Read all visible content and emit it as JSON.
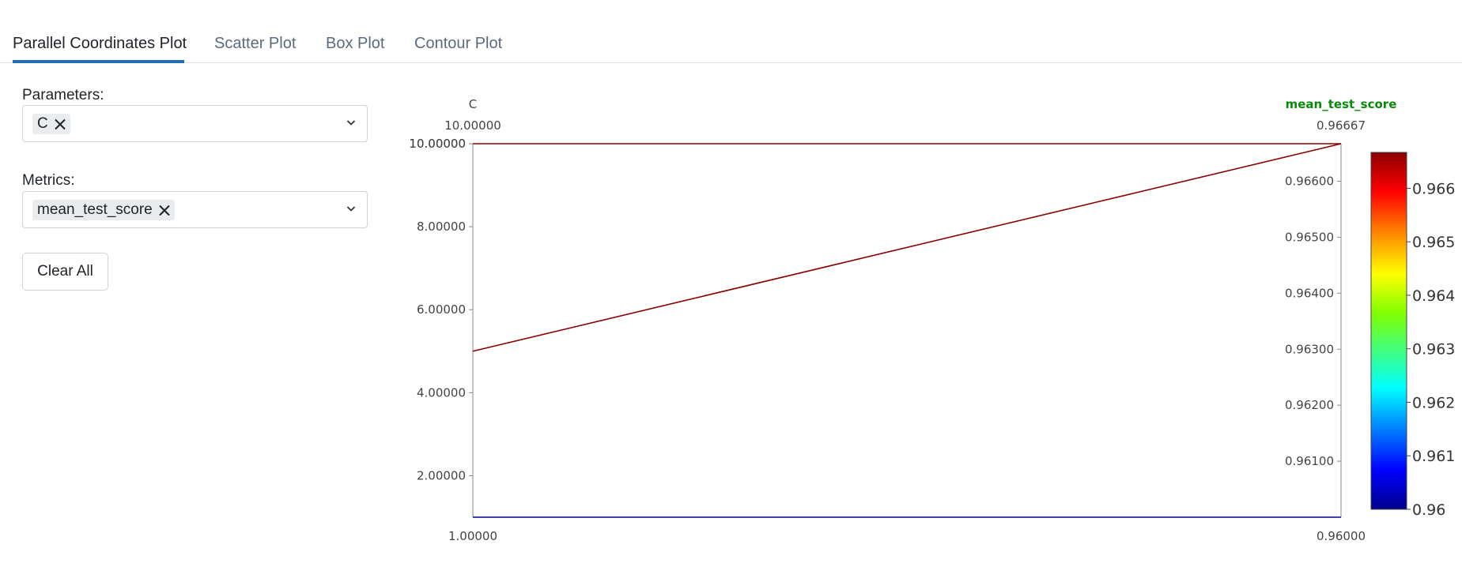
{
  "tabs": [
    {
      "label": "Parallel Coordinates Plot",
      "active": true
    },
    {
      "label": "Scatter Plot",
      "active": false
    },
    {
      "label": "Box Plot",
      "active": false
    },
    {
      "label": "Contour Plot",
      "active": false
    }
  ],
  "parameters": {
    "label": "Parameters:",
    "selected": [
      "C"
    ]
  },
  "metrics": {
    "label": "Metrics:",
    "selected": [
      "mean_test_score"
    ]
  },
  "clear_all_label": "Clear All",
  "colors": {
    "accent": "#1f6fb5",
    "metric_title": "#0a8a0a",
    "line_high": "#8b0000",
    "line_low": "#00008b"
  },
  "icons": {
    "remove": "close-icon",
    "dropdown": "chevron-down-icon"
  },
  "chart_data": {
    "type": "parallel_coordinates",
    "dimensions": [
      {
        "name": "C",
        "range": [
          1.0,
          10.0
        ],
        "top_label": "10.00000",
        "bottom_label": "1.00000",
        "ticks": [
          "10.00000",
          "8.00000",
          "6.00000",
          "4.00000",
          "2.00000"
        ],
        "tick_values": [
          10,
          8,
          6,
          4,
          2
        ]
      },
      {
        "name": "mean_test_score",
        "range": [
          0.96,
          0.96667
        ],
        "top_label": "0.96667",
        "bottom_label": "0.96000",
        "ticks": [
          "0.96600",
          "0.96500",
          "0.96400",
          "0.96300",
          "0.96200",
          "0.96100"
        ],
        "tick_values": [
          0.966,
          0.965,
          0.964,
          0.963,
          0.962,
          0.961
        ]
      }
    ],
    "lines": [
      {
        "C": 10.0,
        "mean_test_score": 0.96667
      },
      {
        "C": 5.0,
        "mean_test_score": 0.96667
      },
      {
        "C": 1.0,
        "mean_test_score": 0.96
      }
    ],
    "colorbar": {
      "range": [
        0.96,
        0.96667
      ],
      "ticks": [
        "0.966",
        "0.965",
        "0.964",
        "0.963",
        "0.962",
        "0.961",
        "0.96"
      ],
      "tick_values": [
        0.966,
        0.965,
        0.964,
        0.963,
        0.962,
        0.961,
        0.96
      ],
      "colorscale": "jet"
    }
  }
}
